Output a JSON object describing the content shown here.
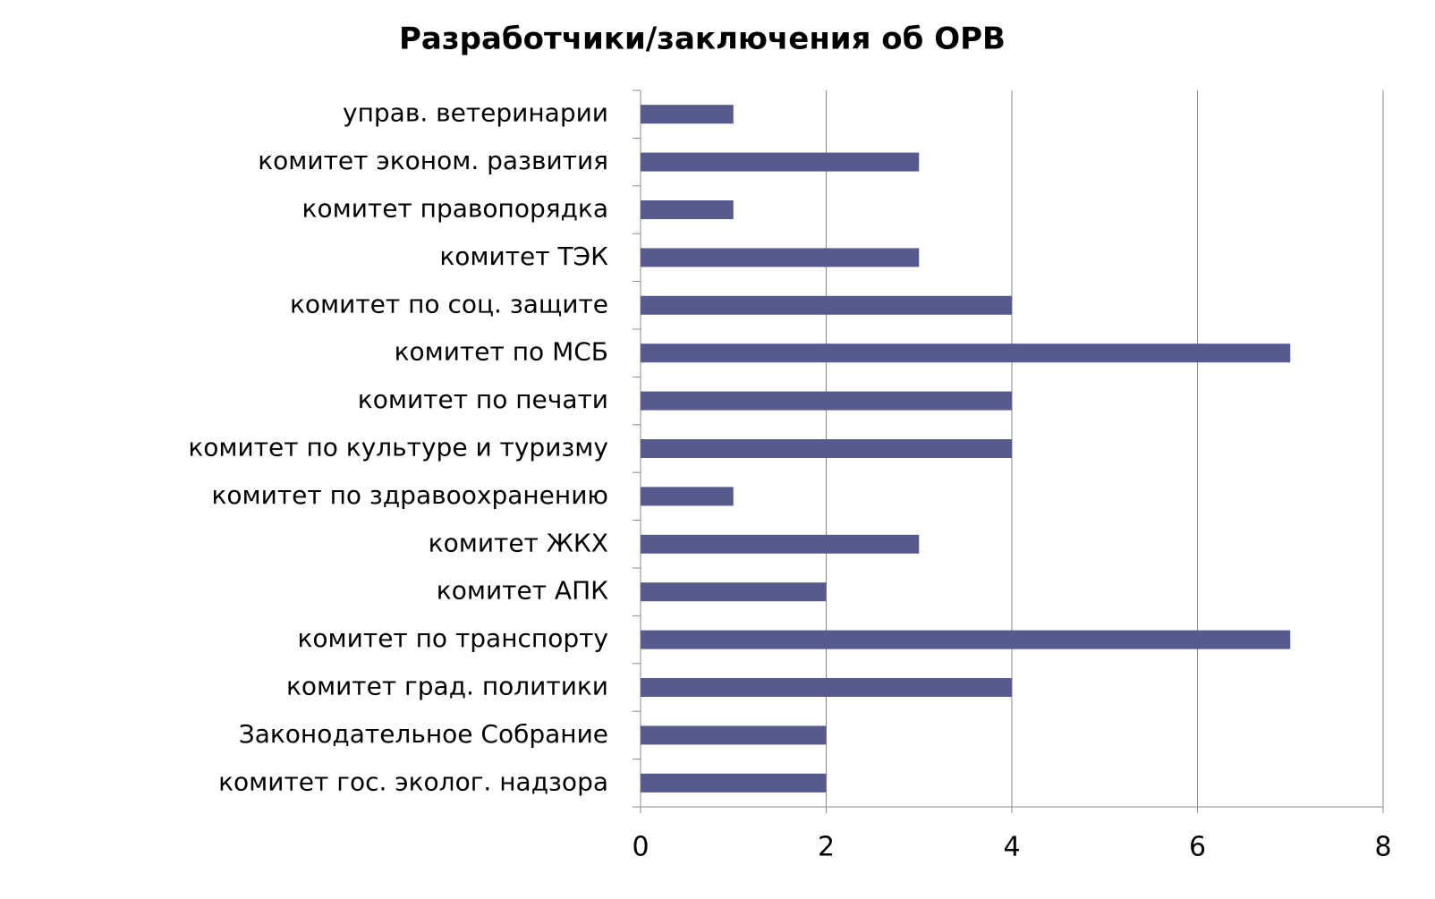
{
  "chart_data": {
    "type": "hbar",
    "title": "Разработчики/заключения об ОРВ",
    "categories": [
      "управ. ветеринарии",
      "комитет эконом. развития",
      "комитет правопорядка",
      "комитет ТЭК",
      "комитет по соц. защите",
      "комитет по МСБ",
      "комитет по печати",
      "комитет по культуре и туризму",
      "комитет по здравоохранению",
      "комитет ЖКХ",
      "комитет АПК",
      "комитет по транспорту",
      "комитет град. политики",
      "Законодательное Собрание",
      "комитет гос. эколог. надзора"
    ],
    "values": [
      1,
      3,
      1,
      3,
      4,
      7,
      4,
      4,
      1,
      3,
      2,
      7,
      4,
      2,
      2
    ],
    "color": "#565a8c",
    "xlim": [
      0,
      8
    ],
    "xticks": [
      0,
      2,
      4,
      6,
      8
    ],
    "grid": true
  }
}
